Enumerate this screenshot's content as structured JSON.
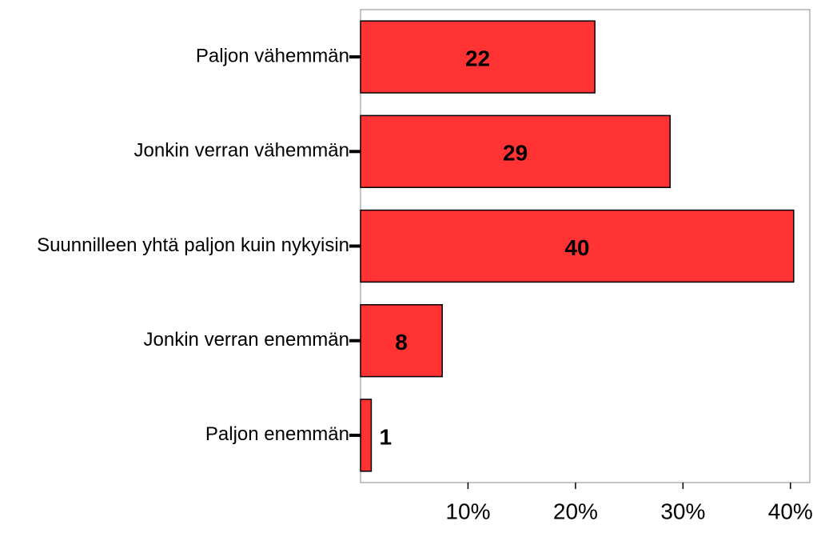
{
  "chart_data": {
    "type": "barh",
    "categories": [
      "Paljon vähemmän",
      "Jonkin verran vähemmän",
      "Suunnilleen yhtä paljon kuin nykyisin",
      "Jonkin verran enemmän",
      "Paljon enemmän"
    ],
    "values": [
      21.8,
      28.8,
      40.3,
      7.6,
      1.0
    ],
    "value_labels": [
      "22",
      "29",
      "40",
      "8",
      "1"
    ],
    "color": "#ff3333",
    "xlim": [
      0,
      41.8
    ],
    "xticks": [
      {
        "value": 10,
        "label": "10%"
      },
      {
        "value": 20,
        "label": "20%"
      },
      {
        "value": 30,
        "label": "30%"
      },
      {
        "value": 40,
        "label": "40%"
      }
    ]
  }
}
